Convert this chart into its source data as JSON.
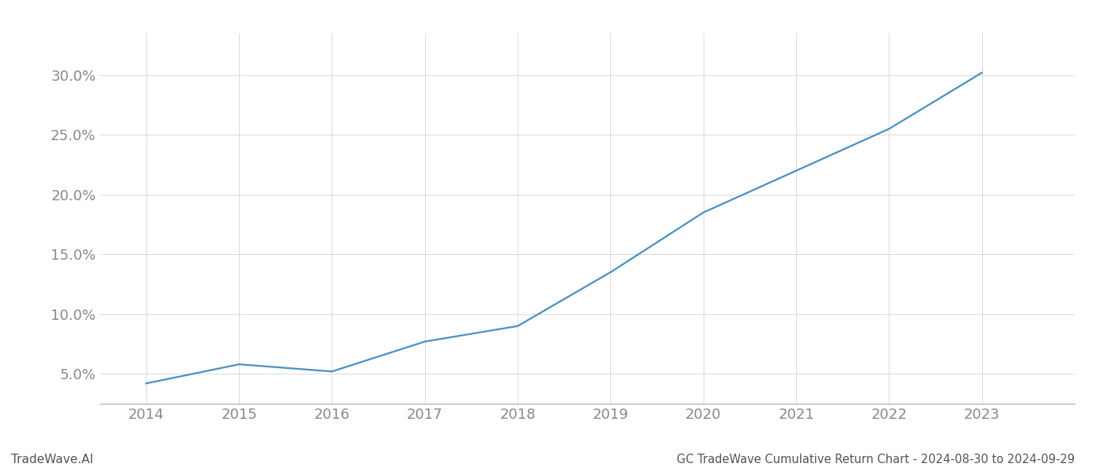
{
  "x_years": [
    2014,
    2015,
    2016,
    2017,
    2018,
    2019,
    2020,
    2021,
    2022,
    2023
  ],
  "y_values": [
    0.042,
    0.058,
    0.052,
    0.077,
    0.09,
    0.135,
    0.185,
    0.22,
    0.255,
    0.302
  ],
  "line_color": "#4a90c4",
  "line_width": 1.6,
  "title": "GC TradeWave Cumulative Return Chart - 2024-08-30 to 2024-09-29",
  "watermark": "TradeWave.AI",
  "ylim": [
    0.025,
    0.335
  ],
  "yticks": [
    0.05,
    0.1,
    0.15,
    0.2,
    0.25,
    0.3
  ],
  "xlim_left": 2013.5,
  "xlim_right": 2024.0,
  "background_color": "#ffffff",
  "grid_color": "#cccccc",
  "grid_linewidth": 0.5,
  "title_fontsize": 10.5,
  "watermark_fontsize": 11,
  "tick_label_fontsize": 13,
  "axis_label_color": "#888888",
  "title_color": "#888888",
  "bottom_text_color": "#555555"
}
